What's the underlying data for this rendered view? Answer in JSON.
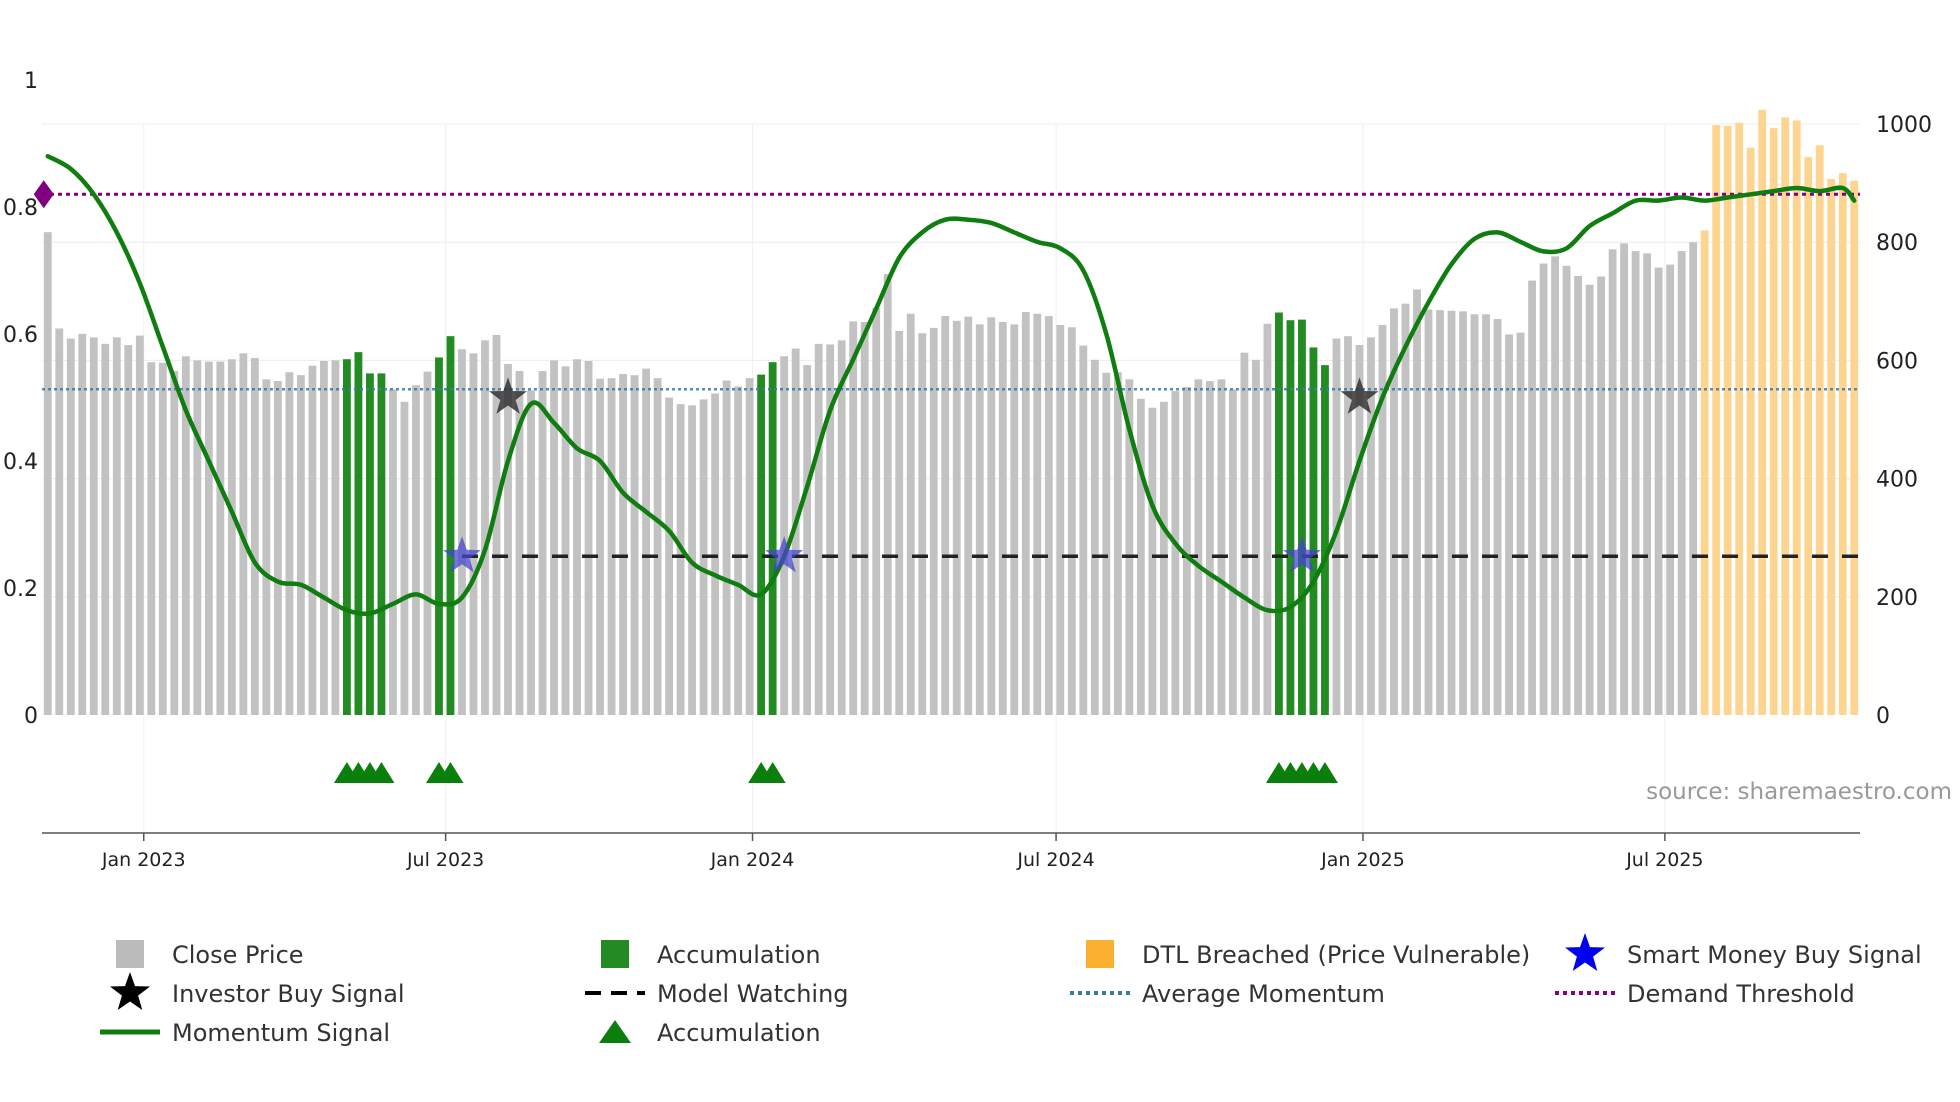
{
  "chart_data": {
    "type": "bar",
    "title": "",
    "source_text": "source: sharemaestro.com",
    "y_left": {
      "range": [
        0,
        0.93
      ],
      "ticks": [
        {
          "value": 0,
          "label": "0"
        },
        {
          "value": 0.2,
          "label": "0.2"
        },
        {
          "value": 0.4,
          "label": "0.4"
        },
        {
          "value": 0.6,
          "label": "0.6"
        },
        {
          "value": 0.8,
          "label": "0.8"
        },
        {
          "value": 1,
          "label": "1"
        }
      ]
    },
    "y_right": {
      "range": [
        0,
        1000
      ],
      "ticks": [
        {
          "value": 0,
          "label": "0"
        },
        {
          "value": 200,
          "label": "200"
        },
        {
          "value": 400,
          "label": "400"
        },
        {
          "value": 600,
          "label": "600"
        },
        {
          "value": 800,
          "label": "800"
        },
        {
          "value": 1000,
          "label": "1000"
        }
      ]
    },
    "x_axis": {
      "range": [
        "2022-11-01",
        "2025-10-26"
      ],
      "ticks": [
        {
          "date": "2023-01-01",
          "label": "Jan 2023"
        },
        {
          "date": "2023-07-01",
          "label": "Jul 2023"
        },
        {
          "date": "2024-01-01",
          "label": "Jan 2024"
        },
        {
          "date": "2024-07-01",
          "label": "Jul 2024"
        },
        {
          "date": "2025-01-01",
          "label": "Jan 2025"
        },
        {
          "date": "2025-07-01",
          "label": "Jul 2025"
        }
      ]
    },
    "colors": {
      "close_price": "#c2c2c2",
      "accumulation": "#228b22",
      "dtl_breached": "#fdd591",
      "momentum": "#0f7d0f",
      "average_momentum": "#3a7ca5",
      "demand_threshold": "#800080",
      "model_watching": "#222222",
      "investor_star": "#333333",
      "smart_money_star": "#4545cc",
      "accum_marker": "#0b7f0b",
      "legend_gray": "#bbbbbb",
      "legend_orange": "#fbb12f",
      "legend_blue_star": "#0000ee",
      "legend_black_star": "#000000"
    },
    "weekly_close_prices": [
      817,
      654,
      637,
      645,
      639,
      628,
      639,
      626,
      642,
      597,
      596,
      582,
      607,
      600,
      598,
      598,
      602,
      612,
      604,
      568,
      565,
      580,
      575,
      591,
      599,
      600,
      602,
      614,
      578,
      578,
      551,
      530,
      558,
      581,
      605,
      641,
      619,
      612,
      634,
      643,
      594,
      582,
      549,
      582,
      600,
      590,
      602,
      599,
      569,
      570,
      577,
      575,
      586,
      570,
      537,
      526,
      524,
      534,
      544,
      566,
      556,
      570,
      576,
      597,
      607,
      620,
      592,
      628,
      627,
      634,
      666,
      665,
      689,
      746,
      650,
      679,
      646,
      655,
      675,
      667,
      674,
      661,
      673,
      665,
      661,
      682,
      679,
      675,
      660,
      656,
      625,
      601,
      579,
      580,
      568,
      535,
      520,
      530,
      548,
      555,
      568,
      565,
      568,
      551,
      613,
      601,
      662,
      681,
      668,
      669,
      622,
      592,
      637,
      641,
      626,
      639,
      660,
      688,
      696,
      720,
      686,
      685,
      684,
      683,
      678,
      678,
      670,
      644,
      647,
      735,
      764,
      776,
      760,
      743,
      728,
      742,
      788,
      798,
      785,
      781,
      757,
      762,
      785,
      800,
      820,
      998,
      997,
      1002,
      960,
      1024,
      993,
      1011,
      1006,
      944,
      964,
      907,
      917,
      904
    ],
    "accumulation_weeks": [
      26,
      27,
      28,
      29,
      34,
      35,
      62,
      63,
      107,
      108,
      109,
      110,
      111
    ],
    "dtl_breached_from_week": 144,
    "momentum_signal": [
      {
        "w": 0,
        "v": 0.88
      },
      {
        "w": 2,
        "v": 0.86
      },
      {
        "w": 4,
        "v": 0.82
      },
      {
        "w": 6,
        "v": 0.76
      },
      {
        "w": 8,
        "v": 0.68
      },
      {
        "w": 10,
        "v": 0.58
      },
      {
        "w": 12,
        "v": 0.48
      },
      {
        "w": 14,
        "v": 0.4
      },
      {
        "w": 16,
        "v": 0.32
      },
      {
        "w": 18,
        "v": 0.24
      },
      {
        "w": 20,
        "v": 0.21
      },
      {
        "w": 22,
        "v": 0.205
      },
      {
        "w": 24,
        "v": 0.185
      },
      {
        "w": 26,
        "v": 0.165
      },
      {
        "w": 28,
        "v": 0.16
      },
      {
        "w": 30,
        "v": 0.175
      },
      {
        "w": 32,
        "v": 0.19
      },
      {
        "w": 34,
        "v": 0.175
      },
      {
        "w": 36,
        "v": 0.185
      },
      {
        "w": 38,
        "v": 0.26
      },
      {
        "w": 40,
        "v": 0.4
      },
      {
        "w": 42,
        "v": 0.49
      },
      {
        "w": 44,
        "v": 0.46
      },
      {
        "w": 46,
        "v": 0.42
      },
      {
        "w": 48,
        "v": 0.4
      },
      {
        "w": 50,
        "v": 0.35
      },
      {
        "w": 52,
        "v": 0.32
      },
      {
        "w": 54,
        "v": 0.29
      },
      {
        "w": 56,
        "v": 0.24
      },
      {
        "w": 58,
        "v": 0.22
      },
      {
        "w": 60,
        "v": 0.205
      },
      {
        "w": 62,
        "v": 0.19
      },
      {
        "w": 64,
        "v": 0.25
      },
      {
        "w": 66,
        "v": 0.36
      },
      {
        "w": 68,
        "v": 0.48
      },
      {
        "w": 70,
        "v": 0.56
      },
      {
        "w": 72,
        "v": 0.64
      },
      {
        "w": 74,
        "v": 0.72
      },
      {
        "w": 76,
        "v": 0.76
      },
      {
        "w": 78,
        "v": 0.78
      },
      {
        "w": 80,
        "v": 0.78
      },
      {
        "w": 82,
        "v": 0.775
      },
      {
        "w": 84,
        "v": 0.76
      },
      {
        "w": 86,
        "v": 0.745
      },
      {
        "w": 88,
        "v": 0.735
      },
      {
        "w": 90,
        "v": 0.7
      },
      {
        "w": 92,
        "v": 0.6
      },
      {
        "w": 94,
        "v": 0.45
      },
      {
        "w": 96,
        "v": 0.33
      },
      {
        "w": 98,
        "v": 0.27
      },
      {
        "w": 100,
        "v": 0.235
      },
      {
        "w": 102,
        "v": 0.21
      },
      {
        "w": 104,
        "v": 0.185
      },
      {
        "w": 106,
        "v": 0.165
      },
      {
        "w": 108,
        "v": 0.17
      },
      {
        "w": 110,
        "v": 0.21
      },
      {
        "w": 112,
        "v": 0.29
      },
      {
        "w": 114,
        "v": 0.4
      },
      {
        "w": 116,
        "v": 0.5
      },
      {
        "w": 118,
        "v": 0.58
      },
      {
        "w": 120,
        "v": 0.65
      },
      {
        "w": 122,
        "v": 0.71
      },
      {
        "w": 124,
        "v": 0.75
      },
      {
        "w": 126,
        "v": 0.76
      },
      {
        "w": 128,
        "v": 0.745
      },
      {
        "w": 130,
        "v": 0.73
      },
      {
        "w": 132,
        "v": 0.735
      },
      {
        "w": 134,
        "v": 0.77
      },
      {
        "w": 136,
        "v": 0.79
      },
      {
        "w": 138,
        "v": 0.81
      },
      {
        "w": 140,
        "v": 0.81
      },
      {
        "w": 142,
        "v": 0.815
      },
      {
        "w": 144,
        "v": 0.81
      },
      {
        "w": 146,
        "v": 0.815
      },
      {
        "w": 148,
        "v": 0.82
      },
      {
        "w": 150,
        "v": 0.825
      },
      {
        "w": 152,
        "v": 0.83
      },
      {
        "w": 154,
        "v": 0.825
      },
      {
        "w": 156,
        "v": 0.83
      },
      {
        "w": 157,
        "v": 0.81
      }
    ],
    "average_momentum": 0.513,
    "demand_threshold": 0.82,
    "model_watching_level": 0.25,
    "model_watching_from_week": 36,
    "investor_buy_signals": [
      {
        "w": 40,
        "v": 0.5
      },
      {
        "w": 114,
        "v": 0.5
      }
    ],
    "smart_money_buy_signals": [
      {
        "w": 36,
        "v": 0.25
      },
      {
        "w": 64,
        "v": 0.25
      },
      {
        "w": 109,
        "v": 0.25
      }
    ],
    "accumulation_markers": [
      26,
      27,
      28,
      29,
      34,
      35,
      62,
      63,
      107,
      108,
      109,
      110,
      111
    ],
    "legend": [
      {
        "key": "close_price",
        "label": "Close Price",
        "symbol": "square",
        "color": "legend_gray"
      },
      {
        "key": "accumulation_bar",
        "label": "Accumulation",
        "symbol": "square",
        "color": "accumulation"
      },
      {
        "key": "dtl_breached",
        "label": "DTL Breached (Price Vulnerable)",
        "symbol": "square",
        "color": "legend_orange"
      },
      {
        "key": "smart_money",
        "label": "Smart Money Buy Signal",
        "symbol": "star",
        "color": "legend_blue_star"
      },
      {
        "key": "investor_buy",
        "label": "Investor Buy Signal",
        "symbol": "star",
        "color": "legend_black_star"
      },
      {
        "key": "model_watching",
        "label": "Model Watching",
        "symbol": "dash",
        "color": "legend_black_star"
      },
      {
        "key": "average_momentum",
        "label": "Average Momentum",
        "symbol": "dot",
        "color": "average_momentum"
      },
      {
        "key": "demand_threshold",
        "label": "Demand Threshold",
        "symbol": "dot",
        "color": "demand_threshold"
      },
      {
        "key": "momentum_signal",
        "label": "Momentum Signal",
        "symbol": "line",
        "color": "momentum"
      },
      {
        "key": "accumulation_marker",
        "label": "Accumulation",
        "symbol": "triangle",
        "color": "accum_marker"
      }
    ]
  }
}
